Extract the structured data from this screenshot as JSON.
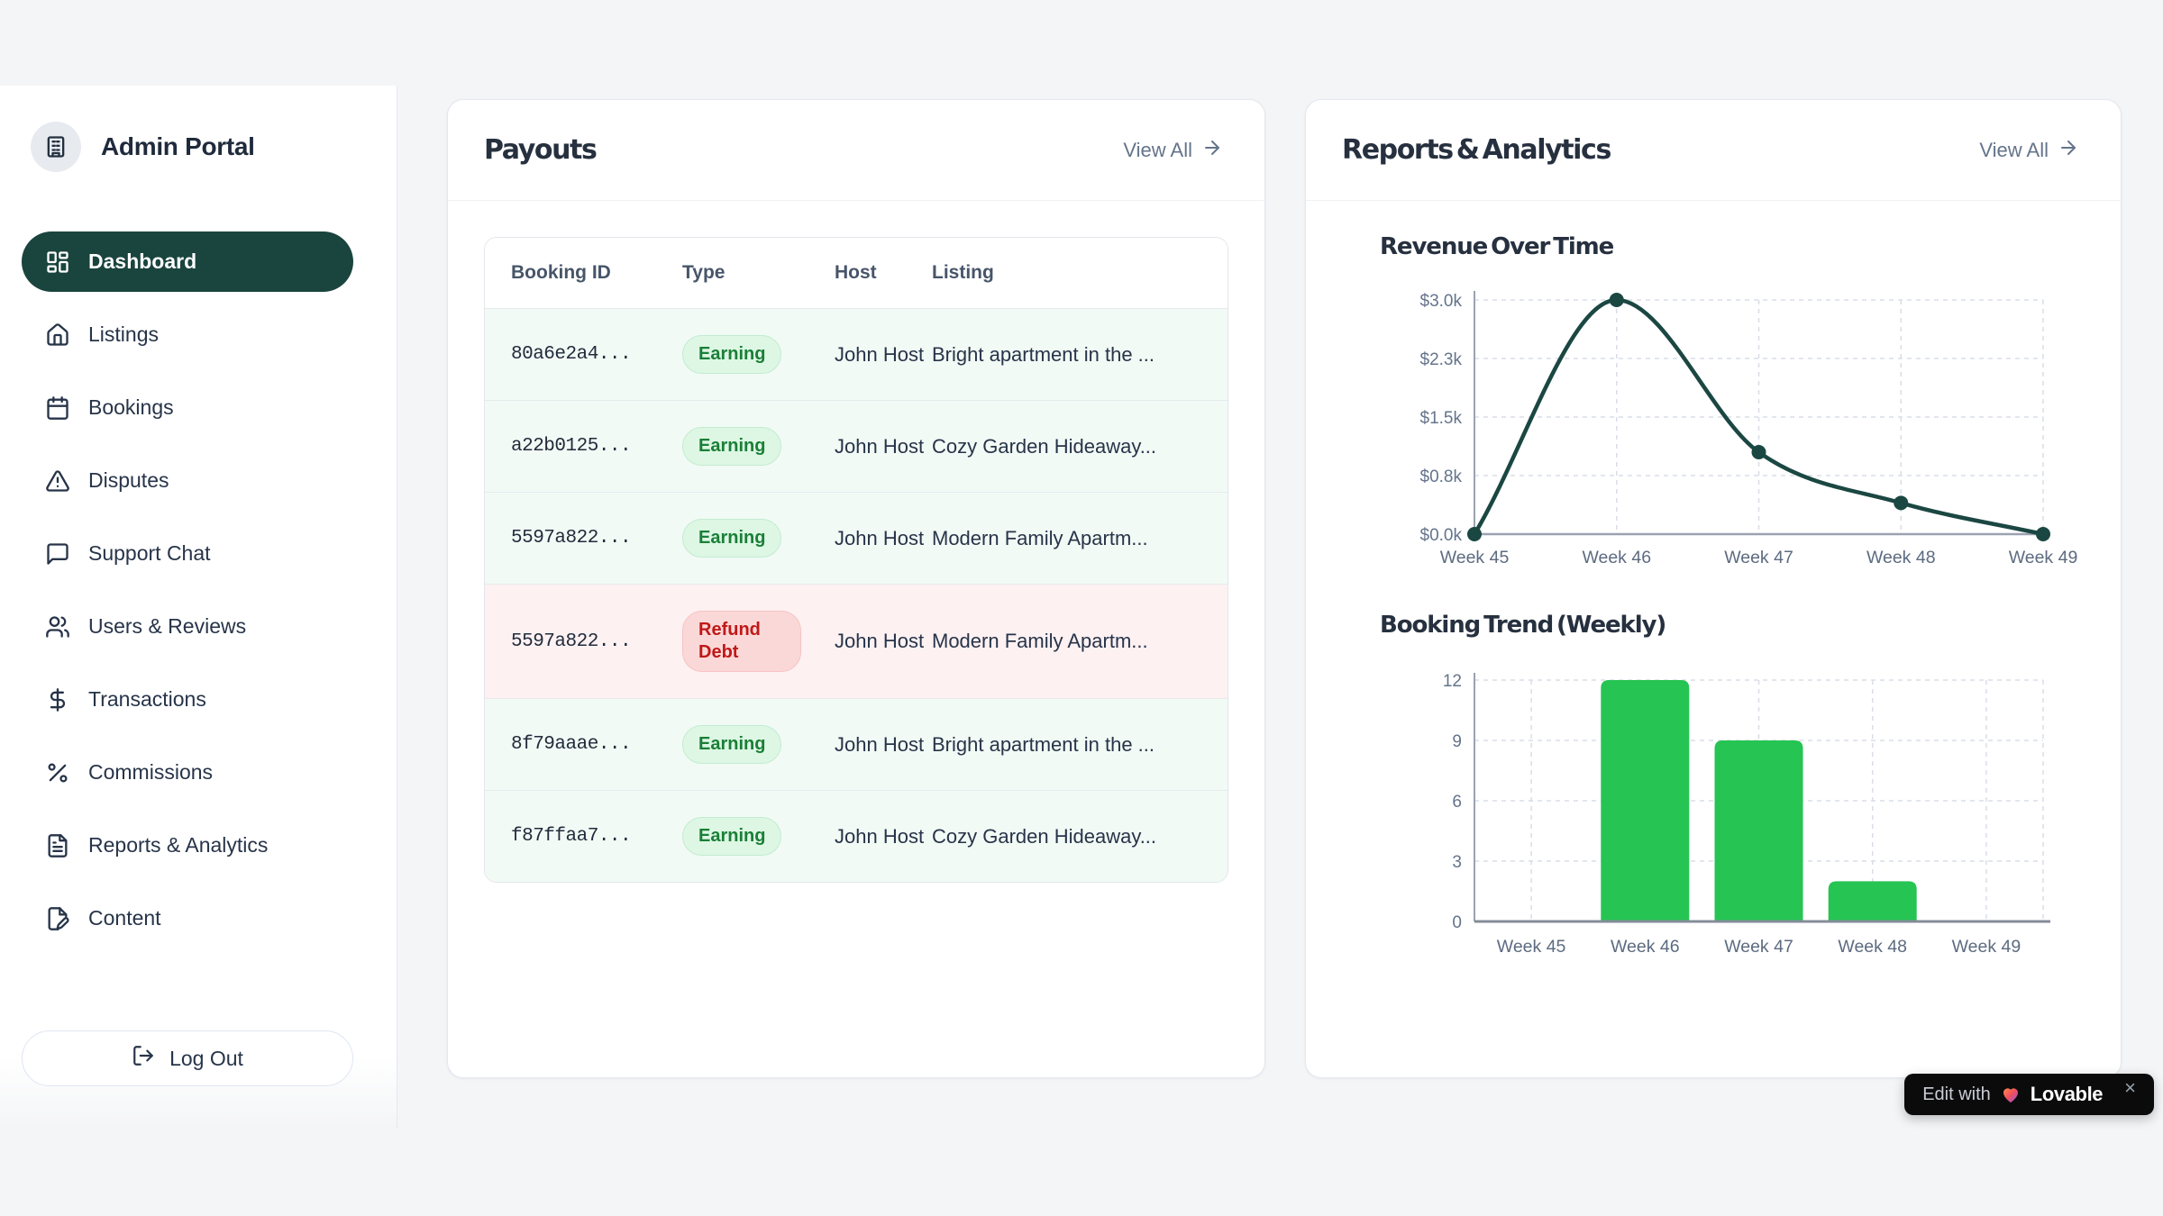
{
  "sidebar": {
    "title": "Admin Portal",
    "logo_icon": "building-icon",
    "items": [
      {
        "label": "Dashboard",
        "icon": "dashboard-icon",
        "active": true
      },
      {
        "label": "Listings",
        "icon": "home-icon",
        "active": false
      },
      {
        "label": "Bookings",
        "icon": "calendar-icon",
        "active": false
      },
      {
        "label": "Disputes",
        "icon": "alert-triangle-icon",
        "active": false
      },
      {
        "label": "Support Chat",
        "icon": "chat-icon",
        "active": false
      },
      {
        "label": "Users & Reviews",
        "icon": "users-icon",
        "active": false
      },
      {
        "label": "Transactions",
        "icon": "dollar-icon",
        "active": false
      },
      {
        "label": "Commissions",
        "icon": "percent-icon",
        "active": false
      },
      {
        "label": "Reports & Analytics",
        "icon": "file-text-icon",
        "active": false
      },
      {
        "label": "Content",
        "icon": "file-pen-icon",
        "active": false
      }
    ],
    "logout_label": "Log Out"
  },
  "payouts": {
    "title": "Payouts",
    "view_all_label": "View All",
    "table": {
      "headers": [
        "Booking ID",
        "Type",
        "Host",
        "Listing"
      ],
      "rows": [
        {
          "booking_id": "80a6e2a4...",
          "type": "Earning",
          "variant": "earning",
          "host": "John Host",
          "listing": "Bright apartment in the ..."
        },
        {
          "booking_id": "a22b0125...",
          "type": "Earning",
          "variant": "earning",
          "host": "John Host",
          "listing": "Cozy Garden Hideaway..."
        },
        {
          "booking_id": "5597a822...",
          "type": "Earning",
          "variant": "earning",
          "host": "John Host",
          "listing": "Modern Family Apartm..."
        },
        {
          "booking_id": "5597a822...",
          "type": "Refund Debt",
          "variant": "refund",
          "host": "John Host",
          "listing": "Modern Family Apartm..."
        },
        {
          "booking_id": "8f79aaae...",
          "type": "Earning",
          "variant": "earning",
          "host": "John Host",
          "listing": "Bright apartment in the ..."
        },
        {
          "booking_id": "f87ffaa7...",
          "type": "Earning",
          "variant": "earning",
          "host": "John Host",
          "listing": "Cozy Garden Hideaway..."
        }
      ]
    }
  },
  "reports": {
    "title": "Reports & Analytics",
    "view_all_label": "View All"
  },
  "chart_data": [
    {
      "type": "line",
      "title": "Revenue Over Time",
      "x": [
        "Week 45",
        "Week 46",
        "Week 47",
        "Week 48",
        "Week 49"
      ],
      "values": [
        0,
        3000,
        1050,
        400,
        0
      ],
      "ylim": [
        0,
        3000
      ],
      "yticks": [
        0,
        750,
        1500,
        2250,
        3000
      ],
      "ytick_labels": [
        "$0.0k",
        "$0.8k",
        "$1.5k",
        "$2.3k",
        "$3.0k"
      ],
      "line_color": "#1b4742",
      "grid": "dashed",
      "legend": "none"
    },
    {
      "type": "bar",
      "title": "Booking Trend (Weekly)",
      "categories": [
        "Week 45",
        "Week 46",
        "Week 47",
        "Week 48",
        "Week 49"
      ],
      "values": [
        0,
        12,
        9,
        2,
        0
      ],
      "ylim": [
        0,
        12
      ],
      "yticks": [
        0,
        3,
        6,
        9,
        12
      ],
      "ytick_labels": [
        "0",
        "3",
        "6",
        "9",
        "12"
      ],
      "bar_color": "#26c453",
      "grid": "dashed",
      "legend": "none"
    }
  ],
  "badge": {
    "edit_with": "Edit with",
    "brand": "Lovable",
    "close": "×"
  },
  "colors": {
    "active_pill": "#1a443e",
    "line": "#1b4742",
    "bar": "#26c453",
    "grid": "#d9dde7",
    "axis": "#9aa2b1",
    "tick_text": "#64748b",
    "earning_text": "#1a7f37",
    "refund_text": "#c01818"
  }
}
